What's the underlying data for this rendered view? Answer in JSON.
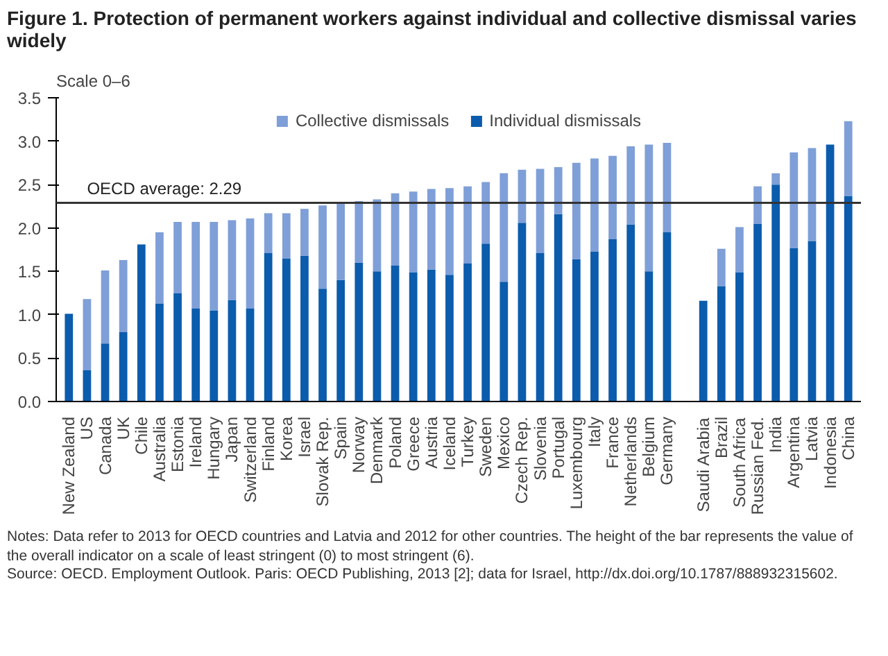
{
  "chart_data": {
    "type": "bar",
    "title": "Figure 1. Protection of permanent workers against individual and collective dismissal varies widely",
    "subtitle": "Scale 0–6",
    "categories": [
      "New Zealand",
      "US",
      "Canada",
      "UK",
      "Chile",
      "Australia",
      "Estonia",
      "Ireland",
      "Hungary",
      "Japan",
      "Switzerland",
      "Finland",
      "Korea",
      "Israel",
      "Slovak Rep.",
      "Spain",
      "Norway",
      "Denmark",
      "Poland",
      "Greece",
      "Austria",
      "Iceland",
      "Turkey",
      "Sweden",
      "Mexico",
      "Czech Rep.",
      "Slovenia",
      "Portugal",
      "Luxembourg",
      "Italy",
      "France",
      "Netherlands",
      "Belgium",
      "Germany",
      null,
      "Saudi Arabia",
      "Brazil",
      "South Africa",
      "Russian Fed.",
      "India",
      "Argentina",
      "Latvia",
      "Indonesia",
      "China"
    ],
    "stacked": true,
    "series": [
      {
        "name": "Individual dismissals",
        "color": "#0b5cad",
        "values": [
          1.01,
          0.36,
          0.67,
          0.8,
          1.81,
          1.13,
          1.25,
          1.07,
          1.05,
          1.17,
          1.07,
          1.71,
          1.65,
          1.68,
          1.3,
          1.4,
          1.6,
          1.5,
          1.57,
          1.49,
          1.52,
          1.46,
          1.59,
          1.82,
          1.38,
          2.06,
          1.71,
          2.16,
          1.64,
          1.73,
          1.87,
          2.04,
          1.5,
          1.95,
          null,
          1.16,
          1.33,
          1.49,
          2.05,
          2.5,
          1.77,
          1.85,
          2.96,
          2.37
        ]
      },
      {
        "name": "Collective dismissals",
        "color": "#7f9fd8",
        "values": [
          0,
          0.82,
          0.84,
          0.83,
          0,
          0.82,
          0.82,
          1.0,
          1.02,
          0.92,
          1.04,
          0.46,
          0.52,
          0.54,
          0.96,
          0.89,
          0.71,
          0.83,
          0.83,
          0.93,
          0.93,
          1.0,
          0.89,
          0.71,
          1.25,
          0.61,
          0.97,
          0.54,
          1.11,
          1.07,
          0.96,
          0.9,
          1.46,
          1.03,
          null,
          0,
          0.43,
          0.52,
          0.43,
          0.13,
          1.1,
          1.07,
          0,
          0.86
        ]
      }
    ],
    "ylim": [
      0,
      3.5
    ],
    "yticks": [
      {
        "value": 0,
        "label": "0.0"
      },
      {
        "value": 0.5,
        "label": "0.5"
      },
      {
        "value": 1,
        "label": "1.0"
      },
      {
        "value": 1.5,
        "label": "1.5"
      },
      {
        "value": 2,
        "label": "2.0"
      },
      {
        "value": 2.5,
        "label": "2.5"
      },
      {
        "value": 3,
        "label": "3.0"
      },
      {
        "value": 3.5,
        "label": "3.5"
      }
    ],
    "ref_lines": [
      {
        "axis": "y",
        "value": 2.29,
        "label": "OECD average: 2.29",
        "color": "#333333"
      }
    ],
    "legend": "top",
    "grid": false,
    "annotations": [
      "Notes: Data refer to 2013 for OECD countries and Latvia and 2012 for other countries. The height of the bar represents the value of the overall indicator on a scale of least stringent (0) to most stringent (6).",
      "Source: OECD. Employment Outlook. Paris: OECD Publishing, 2013 [2]; data for Israel, http://dx.doi.org/10.1787/888932315602."
    ]
  }
}
